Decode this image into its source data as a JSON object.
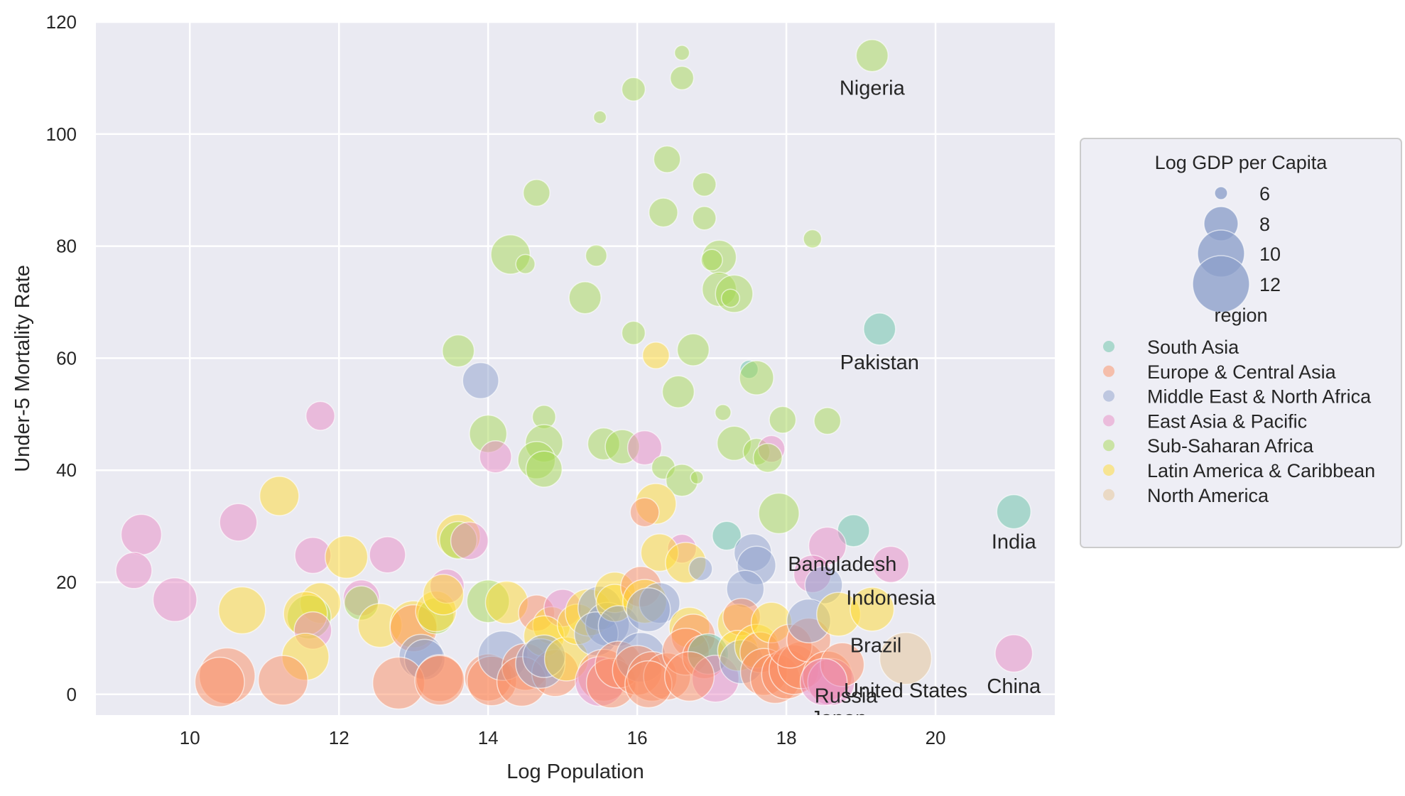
{
  "chart_data": {
    "type": "scatter",
    "xlabel": "Log Population",
    "ylabel": "Under-5 Mortality Rate",
    "xlim": [
      8.74,
      21.6
    ],
    "ylim": [
      -3.7,
      120
    ],
    "xticks": [
      "10",
      "12",
      "14",
      "16",
      "18",
      "20"
    ],
    "yticks": [
      "0",
      "20",
      "40",
      "60",
      "80",
      "100",
      "120"
    ],
    "grid": true,
    "legend": {
      "placement": "right-outside",
      "size_title": "Log GDP per Capita",
      "size_entries": [
        "6",
        "8",
        "10",
        "12"
      ],
      "hue_title": "region",
      "hue_entries": [
        "South Asia",
        "Europe & Central Asia",
        "Middle East & North Africa",
        "East Asia & Pacific",
        "Sub-Saharan Africa",
        "Latin America & Caribbean",
        "North America"
      ]
    },
    "colors": [
      "#66c2a5",
      "#fc8d62",
      "#8da0cb",
      "#e78ac3",
      "#a6d854",
      "#ffd92f",
      "#e5c494"
    ],
    "annotations": [
      {
        "text": "Nigeria",
        "x": 19.15,
        "y": 107
      },
      {
        "text": "Pakistan",
        "x": 19.25,
        "y": 58
      },
      {
        "text": "India",
        "x": 21.05,
        "y": 26
      },
      {
        "text": "Bangladesh",
        "x": 18.75,
        "y": 22
      },
      {
        "text": "Indonesia",
        "x": 19.4,
        "y": 16
      },
      {
        "text": "Brazil",
        "x": 19.2,
        "y": 7.5
      },
      {
        "text": "United States",
        "x": 19.6,
        "y": -0.5
      },
      {
        "text": "China",
        "x": 21.05,
        "y": 0.2
      },
      {
        "text": "Russia",
        "x": 18.8,
        "y": -1.5
      },
      {
        "text": "Japan",
        "x": 18.7,
        "y": -5.5
      }
    ],
    "points": [
      [
        19.15,
        114,
        7.8,
        4
      ],
      [
        16.6,
        114.5,
        6.2,
        4
      ],
      [
        16.6,
        110,
        7.0,
        4
      ],
      [
        15.95,
        108,
        7.0,
        4
      ],
      [
        15.5,
        103,
        6.0,
        4
      ],
      [
        16.4,
        95.5,
        7.3,
        4
      ],
      [
        14.65,
        89.5,
        7.3,
        4
      ],
      [
        16.9,
        91,
        7.0,
        4
      ],
      [
        16.35,
        86,
        7.5,
        4
      ],
      [
        16.9,
        85,
        7.0,
        4
      ],
      [
        18.35,
        81.3,
        6.5,
        4
      ],
      [
        14.3,
        78.5,
        8.8,
        4
      ],
      [
        14.5,
        76.8,
        6.6,
        4
      ],
      [
        15.45,
        78.3,
        6.8,
        4
      ],
      [
        17.1,
        78,
        8.0,
        4
      ],
      [
        17.0,
        77.5,
        6.8,
        4
      ],
      [
        15.3,
        70.8,
        7.8,
        4
      ],
      [
        17.1,
        72.3,
        8.0,
        4
      ],
      [
        17.3,
        71.5,
        8.5,
        4
      ],
      [
        17.25,
        70.7,
        6.5,
        4
      ],
      [
        19.25,
        65.2,
        7.8,
        0
      ],
      [
        15.95,
        64.5,
        7.0,
        4
      ],
      [
        13.6,
        61.3,
        7.8,
        4
      ],
      [
        16.75,
        61.5,
        7.8,
        4
      ],
      [
        16.25,
        60.5,
        7.3,
        5
      ],
      [
        13.9,
        56,
        8.3,
        2
      ],
      [
        17.5,
        58,
        6.5,
        0
      ],
      [
        17.6,
        56.5,
        8.0,
        4
      ],
      [
        16.55,
        54,
        7.8,
        4
      ],
      [
        11.75,
        49.7,
        7.5,
        3
      ],
      [
        14.75,
        49.5,
        7.0,
        4
      ],
      [
        17.15,
        50.3,
        6.3,
        4
      ],
      [
        17.95,
        49,
        7.3,
        4
      ],
      [
        18.55,
        48.8,
        7.3,
        4
      ],
      [
        14.0,
        46.5,
        8.5,
        4
      ],
      [
        14.75,
        44.8,
        8.5,
        4
      ],
      [
        15.55,
        44.7,
        7.8,
        4
      ],
      [
        15.8,
        44.2,
        8.0,
        4
      ],
      [
        16.1,
        44,
        8.0,
        3
      ],
      [
        17.3,
        44.8,
        8.0,
        4
      ],
      [
        17.6,
        43.3,
        7.3,
        4
      ],
      [
        17.8,
        43.8,
        7.3,
        3
      ],
      [
        17.75,
        42.2,
        7.5,
        4
      ],
      [
        14.1,
        42.4,
        7.8,
        3
      ],
      [
        14.65,
        41.8,
        8.5,
        4
      ],
      [
        14.75,
        40.2,
        8.3,
        4
      ],
      [
        16.35,
        40.5,
        7.0,
        4
      ],
      [
        16.6,
        38.2,
        7.8,
        4
      ],
      [
        16.8,
        38.7,
        6.0,
        4
      ],
      [
        16.25,
        34,
        9.0,
        5
      ],
      [
        17.9,
        32.3,
        9.0,
        4
      ],
      [
        21.05,
        32.6,
        8.0,
        0
      ],
      [
        11.2,
        35.4,
        8.8,
        5
      ],
      [
        10.65,
        30.7,
        8.5,
        3
      ],
      [
        9.35,
        28.5,
        9.0,
        3
      ],
      [
        18.9,
        29.2,
        7.8,
        0
      ],
      [
        17.2,
        28.3,
        7.5,
        0
      ],
      [
        16.1,
        32.5,
        7.5,
        1
      ],
      [
        16.6,
        26,
        7.5,
        3
      ],
      [
        16.3,
        25.3,
        8.5,
        5
      ],
      [
        18.55,
        26.5,
        8.5,
        3
      ],
      [
        19.4,
        23.2,
        8.3,
        3
      ],
      [
        13.6,
        28.2,
        9.5,
        5
      ],
      [
        13.6,
        27.5,
        8.5,
        4
      ],
      [
        13.75,
        27.4,
        8.5,
        3
      ],
      [
        11.65,
        24.8,
        8.3,
        3
      ],
      [
        12.1,
        24.5,
        9.3,
        5
      ],
      [
        12.65,
        24.9,
        8.3,
        3
      ],
      [
        16.65,
        23.5,
        9.0,
        5
      ],
      [
        16.85,
        22.4,
        7.0,
        2
      ],
      [
        17.55,
        25.3,
        8.5,
        2
      ],
      [
        17.6,
        23,
        8.7,
        2
      ],
      [
        17.45,
        18.8,
        8.5,
        2
      ],
      [
        18.35,
        21.5,
        8.5,
        3
      ],
      [
        18.5,
        19.5,
        8.5,
        2
      ],
      [
        9.25,
        22.1,
        8.3,
        3
      ],
      [
        9.8,
        16.9,
        9.5,
        3
      ],
      [
        10.7,
        15,
        10.0,
        5
      ],
      [
        11.75,
        16.3,
        9.0,
        5
      ],
      [
        11.6,
        13.8,
        9.5,
        4
      ],
      [
        11.55,
        14.4,
        9.5,
        5
      ],
      [
        11.65,
        11.4,
        8.5,
        3
      ],
      [
        11.55,
        6.7,
        10.0,
        5
      ],
      [
        12.3,
        17.2,
        8.3,
        3
      ],
      [
        12.3,
        16.3,
        8.0,
        4
      ],
      [
        12.55,
        12.3,
        9.5,
        5
      ],
      [
        13.0,
        12.5,
        10.0,
        5
      ],
      [
        13.0,
        11.8,
        10.0,
        1
      ],
      [
        13.3,
        14,
        8.3,
        4
      ],
      [
        13.3,
        14.8,
        9.0,
        5
      ],
      [
        13.45,
        19.3,
        8.0,
        3
      ],
      [
        13.4,
        17.8,
        9.0,
        5
      ],
      [
        14.0,
        16.6,
        9.3,
        4
      ],
      [
        14.25,
        16.4,
        9.3,
        5
      ],
      [
        13.1,
        6.8,
        9.5,
        2
      ],
      [
        13.15,
        6.2,
        9.0,
        2
      ],
      [
        10.5,
        3.3,
        11.8,
        1
      ],
      [
        10.4,
        2.2,
        10.5,
        1
      ],
      [
        11.25,
        2.5,
        10.5,
        1
      ],
      [
        12.8,
        2,
        11.0,
        1
      ],
      [
        13.35,
        2.9,
        10.0,
        1
      ],
      [
        13.35,
        2.5,
        10.5,
        1
      ],
      [
        14.0,
        3,
        10.0,
        1
      ],
      [
        14.05,
        2.4,
        10.5,
        1
      ],
      [
        14.2,
        6.9,
        10.5,
        2
      ],
      [
        14.5,
        4.9,
        10.0,
        1
      ],
      [
        14.45,
        2.3,
        10.5,
        1
      ],
      [
        14.65,
        14.5,
        8.3,
        1
      ],
      [
        14.85,
        12.3,
        8.5,
        5
      ],
      [
        15.0,
        15.4,
        8.5,
        3
      ],
      [
        14.75,
        10.4,
        9.0,
        5
      ],
      [
        14.9,
        3.8,
        10.0,
        1
      ],
      [
        14.7,
        5.5,
        10.5,
        2
      ],
      [
        14.75,
        6.8,
        9.3,
        2
      ],
      [
        15.05,
        6.3,
        9.5,
        5
      ],
      [
        15.2,
        12.5,
        9.0,
        5
      ],
      [
        15.35,
        14.6,
        10.0,
        5
      ],
      [
        15.5,
        15.4,
        9.5,
        2
      ],
      [
        15.6,
        12.5,
        9.5,
        2
      ],
      [
        15.45,
        10.8,
        9.5,
        2
      ],
      [
        15.7,
        18.2,
        9.0,
        5
      ],
      [
        15.7,
        16.3,
        8.5,
        5
      ],
      [
        15.75,
        12.2,
        9.0,
        2
      ],
      [
        15.55,
        3.4,
        11.0,
        1
      ],
      [
        15.5,
        2.3,
        10.5,
        3
      ],
      [
        15.65,
        2,
        10.5,
        1
      ],
      [
        15.75,
        5.3,
        10.0,
        1
      ],
      [
        16.05,
        19.2,
        9.0,
        1
      ],
      [
        16.1,
        16.6,
        9.5,
        5
      ],
      [
        16.3,
        16.3,
        9.0,
        2
      ],
      [
        16.15,
        15.1,
        9.5,
        2
      ],
      [
        16.05,
        6.6,
        10.5,
        2
      ],
      [
        16.0,
        4.3,
        10.5,
        1
      ],
      [
        16.2,
        3.2,
        10.5,
        1
      ],
      [
        16.4,
        3.2,
        10.0,
        1
      ],
      [
        16.15,
        1.8,
        10.0,
        1
      ],
      [
        16.7,
        11.9,
        9.0,
        5
      ],
      [
        16.75,
        10.4,
        9.5,
        1
      ],
      [
        16.65,
        7.6,
        10.0,
        1
      ],
      [
        16.9,
        6.7,
        9.5,
        1
      ],
      [
        16.95,
        7.2,
        9.0,
        0
      ],
      [
        17.05,
        2.8,
        10.0,
        3
      ],
      [
        16.7,
        3.2,
        10.5,
        1
      ],
      [
        17.35,
        12.5,
        9.0,
        5
      ],
      [
        17.4,
        13.8,
        8.5,
        1
      ],
      [
        17.35,
        7.8,
        9.0,
        5
      ],
      [
        17.4,
        5.8,
        9.5,
        2
      ],
      [
        17.6,
        8.6,
        9.5,
        5
      ],
      [
        17.65,
        7.5,
        9.0,
        1
      ],
      [
        17.8,
        12.8,
        9.0,
        5
      ],
      [
        17.7,
        4,
        10.0,
        1
      ],
      [
        17.85,
        2.8,
        10.5,
        1
      ],
      [
        18.0,
        3.6,
        10.5,
        1
      ],
      [
        18.1,
        4.4,
        10.5,
        1
      ],
      [
        18.2,
        5.2,
        10.0,
        1
      ],
      [
        18.05,
        8.6,
        9.5,
        1
      ],
      [
        18.3,
        9.7,
        9.5,
        1
      ],
      [
        18.3,
        13.1,
        9.5,
        2
      ],
      [
        18.55,
        3.3,
        10.5,
        1
      ],
      [
        18.6,
        2.2,
        10.0,
        3
      ],
      [
        18.7,
        14.3,
        9.5,
        5
      ],
      [
        18.75,
        5.3,
        9.5,
        1
      ],
      [
        18.5,
        2.2,
        10.0,
        3
      ],
      [
        19.15,
        15.2,
        9.5,
        5
      ],
      [
        19.6,
        6.4,
        11.0,
        6
      ],
      [
        21.05,
        7.3,
        8.5,
        3
      ]
    ]
  }
}
